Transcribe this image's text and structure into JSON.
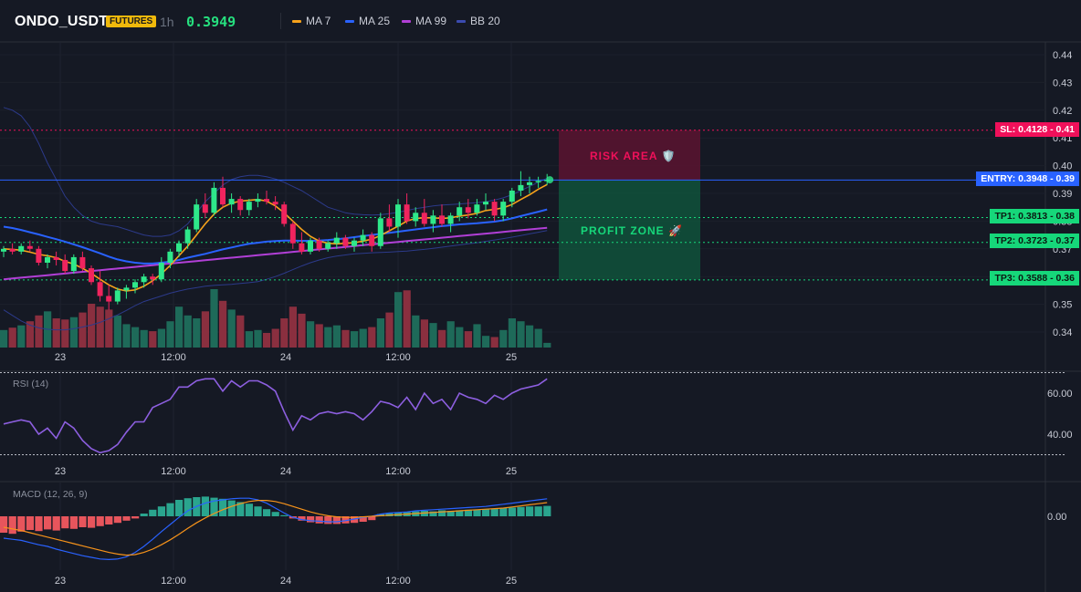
{
  "header": {
    "symbol": "ONDO_USDT",
    "badge": "FUTURES",
    "timeframe": "1h",
    "price": "0.3949",
    "legend": [
      {
        "label": "MA 7",
        "color": "#f7a21b"
      },
      {
        "label": "MA 25",
        "color": "#2962ff"
      },
      {
        "label": "MA 99",
        "color": "#b13fd6"
      },
      {
        "label": "BB 20",
        "color": "#2c3a8a"
      }
    ]
  },
  "levels": {
    "sl": {
      "label": "SL: 0.4128 - 0.41",
      "color": "#f0105a"
    },
    "entry": {
      "label": "ENTRY: 0.3948 - 0.39",
      "color": "#2962ff"
    },
    "tp1": {
      "label": "TP1: 0.3813 - 0.38",
      "color": "#16d77a"
    },
    "tp2": {
      "label": "TP2: 0.3723 - 0.37",
      "color": "#16d77a"
    },
    "tp3": {
      "label": "TP3: 0.3588 - 0.36",
      "color": "#16d77a"
    }
  },
  "zones": {
    "risk": "RISK AREA 🛡️",
    "profit": "PROFIT ZONE 🚀"
  },
  "panes": {
    "rsi_title": "RSI (14)",
    "macd_title": "MACD (12, 26, 9)"
  },
  "chart_data": [
    {
      "type": "candlestick",
      "y_ticks": [
        "0.44",
        "0.43",
        "0.42",
        "0.41",
        "0.40",
        "0.39",
        "0.38",
        "0.37",
        "0.36",
        "0.35",
        "0.34"
      ],
      "x_labels": [
        "23",
        "12:00",
        "24",
        "12:00",
        "25"
      ],
      "candles": [
        [
          0.369,
          0.371,
          0.367,
          0.37
        ],
        [
          0.37,
          0.372,
          0.368,
          0.369
        ],
        [
          0.369,
          0.372,
          0.368,
          0.371
        ],
        [
          0.371,
          0.373,
          0.369,
          0.37
        ],
        [
          0.37,
          0.371,
          0.364,
          0.365
        ],
        [
          0.365,
          0.368,
          0.363,
          0.367
        ],
        [
          0.367,
          0.369,
          0.364,
          0.366
        ],
        [
          0.366,
          0.368,
          0.361,
          0.362
        ],
        [
          0.362,
          0.368,
          0.361,
          0.367
        ],
        [
          0.367,
          0.369,
          0.362,
          0.363
        ],
        [
          0.363,
          0.364,
          0.357,
          0.358
        ],
        [
          0.358,
          0.362,
          0.351,
          0.353
        ],
        [
          0.353,
          0.357,
          0.348,
          0.351
        ],
        [
          0.351,
          0.356,
          0.35,
          0.355
        ],
        [
          0.355,
          0.357,
          0.352,
          0.356
        ],
        [
          0.356,
          0.359,
          0.354,
          0.358
        ],
        [
          0.358,
          0.361,
          0.356,
          0.36
        ],
        [
          0.36,
          0.361,
          0.357,
          0.359
        ],
        [
          0.359,
          0.367,
          0.358,
          0.365
        ],
        [
          0.365,
          0.37,
          0.363,
          0.369
        ],
        [
          0.369,
          0.373,
          0.367,
          0.372
        ],
        [
          0.372,
          0.378,
          0.37,
          0.377
        ],
        [
          0.377,
          0.388,
          0.376,
          0.386
        ],
        [
          0.386,
          0.39,
          0.381,
          0.383
        ],
        [
          0.383,
          0.394,
          0.382,
          0.392
        ],
        [
          0.392,
          0.396,
          0.385,
          0.386
        ],
        [
          0.386,
          0.39,
          0.383,
          0.388
        ],
        [
          0.388,
          0.389,
          0.382,
          0.384
        ],
        [
          0.384,
          0.388,
          0.382,
          0.387
        ],
        [
          0.387,
          0.39,
          0.385,
          0.388
        ],
        [
          0.388,
          0.391,
          0.386,
          0.387
        ],
        [
          0.387,
          0.389,
          0.384,
          0.386
        ],
        [
          0.386,
          0.387,
          0.378,
          0.379
        ],
        [
          0.379,
          0.38,
          0.37,
          0.372
        ],
        [
          0.372,
          0.376,
          0.368,
          0.369
        ],
        [
          0.369,
          0.374,
          0.368,
          0.373
        ],
        [
          0.373,
          0.374,
          0.369,
          0.37
        ],
        [
          0.37,
          0.373,
          0.369,
          0.372
        ],
        [
          0.372,
          0.376,
          0.37,
          0.374
        ],
        [
          0.374,
          0.375,
          0.37,
          0.371
        ],
        [
          0.371,
          0.374,
          0.369,
          0.373
        ],
        [
          0.373,
          0.377,
          0.371,
          0.375
        ],
        [
          0.375,
          0.376,
          0.369,
          0.371
        ],
        [
          0.371,
          0.383,
          0.37,
          0.381
        ],
        [
          0.381,
          0.386,
          0.376,
          0.378
        ],
        [
          0.378,
          0.388,
          0.374,
          0.386
        ],
        [
          0.386,
          0.39,
          0.379,
          0.38
        ],
        [
          0.38,
          0.385,
          0.378,
          0.383
        ],
        [
          0.383,
          0.388,
          0.378,
          0.379
        ],
        [
          0.379,
          0.384,
          0.376,
          0.382
        ],
        [
          0.382,
          0.386,
          0.378,
          0.379
        ],
        [
          0.379,
          0.383,
          0.376,
          0.382
        ],
        [
          0.382,
          0.387,
          0.38,
          0.385
        ],
        [
          0.385,
          0.388,
          0.381,
          0.383
        ],
        [
          0.383,
          0.388,
          0.382,
          0.386
        ],
        [
          0.386,
          0.39,
          0.384,
          0.387
        ],
        [
          0.387,
          0.388,
          0.38,
          0.382
        ],
        [
          0.382,
          0.388,
          0.38,
          0.387
        ],
        [
          0.387,
          0.392,
          0.385,
          0.391
        ],
        [
          0.391,
          0.398,
          0.389,
          0.393
        ],
        [
          0.393,
          0.396,
          0.39,
          0.394
        ],
        [
          0.394,
          0.396,
          0.392,
          0.3945
        ],
        [
          0.3945,
          0.397,
          0.393,
          0.3949
        ]
      ],
      "ma7": [
        0.37,
        0.3698,
        0.3695,
        0.3688,
        0.368,
        0.3675,
        0.3668,
        0.3655,
        0.3645,
        0.363,
        0.3612,
        0.359,
        0.357,
        0.3555,
        0.3548,
        0.3552,
        0.3565,
        0.3585,
        0.361,
        0.364,
        0.3675,
        0.371,
        0.375,
        0.379,
        0.3825,
        0.385,
        0.3865,
        0.3872,
        0.3875,
        0.3878,
        0.3872,
        0.3855,
        0.383,
        0.38,
        0.377,
        0.3745,
        0.3728,
        0.372,
        0.3718,
        0.372,
        0.3722,
        0.3728,
        0.3735,
        0.3748,
        0.3765,
        0.3782,
        0.38,
        0.381,
        0.3812,
        0.3812,
        0.381,
        0.3812,
        0.3818,
        0.3822,
        0.3828,
        0.3838,
        0.3842,
        0.3848,
        0.386,
        0.3878,
        0.3895,
        0.3915,
        0.3932
      ],
      "ma25": [
        0.378,
        0.3775,
        0.3768,
        0.376,
        0.3752,
        0.3743,
        0.3735,
        0.3726,
        0.3716,
        0.3706,
        0.3695,
        0.3684,
        0.3672,
        0.3662,
        0.3655,
        0.365,
        0.3647,
        0.3647,
        0.365,
        0.3654,
        0.366,
        0.3668,
        0.3675,
        0.3682,
        0.369,
        0.3698,
        0.3705,
        0.3712,
        0.3718,
        0.3722,
        0.3726,
        0.3728,
        0.373,
        0.373,
        0.3729,
        0.3729,
        0.373,
        0.3732,
        0.3735,
        0.3738,
        0.3742,
        0.3746,
        0.375,
        0.3754,
        0.3758,
        0.3762,
        0.3766,
        0.377,
        0.3774,
        0.3778,
        0.3782,
        0.3785,
        0.3788,
        0.379,
        0.3792,
        0.3795,
        0.3798,
        0.3803,
        0.381,
        0.3818,
        0.3826,
        0.3834,
        0.3842
      ],
      "ma99": [
        0.359,
        0.3593,
        0.3596,
        0.3599,
        0.3602,
        0.3605,
        0.3608,
        0.3611,
        0.3614,
        0.3617,
        0.362,
        0.3623,
        0.3626,
        0.3629,
        0.3632,
        0.3635,
        0.3638,
        0.3641,
        0.3644,
        0.3647,
        0.365,
        0.3653,
        0.3656,
        0.3659,
        0.3662,
        0.3665,
        0.3668,
        0.3671,
        0.3674,
        0.3677,
        0.368,
        0.3683,
        0.3686,
        0.3689,
        0.3692,
        0.3695,
        0.3698,
        0.3701,
        0.3704,
        0.3707,
        0.371,
        0.3713,
        0.3716,
        0.3719,
        0.3722,
        0.3725,
        0.3728,
        0.3731,
        0.3734,
        0.3737,
        0.374,
        0.3743,
        0.3746,
        0.3749,
        0.3752,
        0.3755,
        0.3758,
        0.3761,
        0.3764,
        0.3767,
        0.377,
        0.3773,
        0.3776
      ],
      "bb_upper": [
        0.421,
        0.42,
        0.418,
        0.414,
        0.408,
        0.401,
        0.395,
        0.389,
        0.385,
        0.382,
        0.38,
        0.379,
        0.3785,
        0.378,
        0.377,
        0.376,
        0.375,
        0.3745,
        0.3745,
        0.375,
        0.3765,
        0.379,
        0.383,
        0.387,
        0.39,
        0.393,
        0.395,
        0.396,
        0.3965,
        0.3965,
        0.396,
        0.3952,
        0.394,
        0.3925,
        0.391,
        0.389,
        0.387,
        0.385,
        0.384,
        0.383,
        0.3825,
        0.3823,
        0.3822,
        0.3823,
        0.3827,
        0.3832,
        0.3838,
        0.3845,
        0.385,
        0.3855,
        0.3858,
        0.386,
        0.3862,
        0.3864,
        0.3866,
        0.387,
        0.3876,
        0.3884,
        0.3895,
        0.391,
        0.3925,
        0.394,
        0.3955
      ],
      "bb_lower": [
        0.348,
        0.346,
        0.344,
        0.3425,
        0.3415,
        0.341,
        0.3408,
        0.3408,
        0.3412,
        0.3418,
        0.3425,
        0.3435,
        0.3448,
        0.3462,
        0.3478,
        0.3495,
        0.351,
        0.352,
        0.353,
        0.354,
        0.3548,
        0.3555,
        0.356,
        0.3565,
        0.3568,
        0.357,
        0.3572,
        0.3575,
        0.3578,
        0.3582,
        0.359,
        0.36,
        0.3612,
        0.3625,
        0.3638,
        0.365,
        0.366,
        0.3668,
        0.3674,
        0.3678,
        0.3682,
        0.3684,
        0.3686,
        0.3687,
        0.3688,
        0.369,
        0.3692,
        0.3695,
        0.3698,
        0.3702,
        0.3706,
        0.371,
        0.3714,
        0.3718,
        0.3722,
        0.3727,
        0.3732,
        0.3737,
        0.3742,
        0.3748,
        0.3754,
        0.376,
        0.3766
      ],
      "volume": [
        0.3,
        0.34,
        0.38,
        0.45,
        0.55,
        0.62,
        0.5,
        0.48,
        0.52,
        0.6,
        0.75,
        0.7,
        0.65,
        0.55,
        0.4,
        0.35,
        0.3,
        0.28,
        0.32,
        0.45,
        0.7,
        0.55,
        0.5,
        0.62,
        1.0,
        0.8,
        0.65,
        0.55,
        0.28,
        0.3,
        0.25,
        0.32,
        0.5,
        0.7,
        0.58,
        0.45,
        0.4,
        0.35,
        0.38,
        0.3,
        0.28,
        0.32,
        0.35,
        0.5,
        0.6,
        0.95,
        0.98,
        0.55,
        0.48,
        0.42,
        0.3,
        0.45,
        0.35,
        0.28,
        0.4,
        0.2,
        0.18,
        0.3,
        0.5,
        0.45,
        0.38,
        0.32,
        0.08
      ]
    },
    {
      "type": "line",
      "name": "RSI (14)",
      "y_ticks": [
        "60.00",
        "40.00"
      ],
      "x_labels": [
        "23",
        "12:00",
        "24",
        "12:00",
        "25"
      ],
      "values": [
        45,
        46,
        47,
        46,
        40,
        43,
        38,
        46,
        43,
        37,
        33,
        31,
        32,
        35,
        41,
        46,
        46,
        53,
        55,
        57,
        63,
        63,
        66,
        67,
        67,
        61,
        66,
        63,
        66,
        66,
        64,
        61,
        51,
        42,
        49,
        47,
        50,
        51,
        50,
        51,
        50,
        47,
        51,
        56,
        55,
        53,
        58,
        52,
        60,
        55,
        57,
        52,
        60,
        58,
        57,
        55,
        59,
        57,
        60,
        62,
        63,
        64,
        67
      ]
    },
    {
      "type": "bar",
      "name": "MACD (12, 26, 9)",
      "y_ticks": [
        "0.00"
      ],
      "x_labels": [
        "23",
        "12:00",
        "24",
        "12:00",
        "25"
      ],
      "histogram": [
        -0.003,
        -0.0032,
        -0.0028,
        -0.0025,
        -0.0027,
        -0.0024,
        -0.0026,
        -0.0022,
        -0.0023,
        -0.002,
        -0.0021,
        -0.0018,
        -0.0015,
        -0.0012,
        -0.0008,
        -0.0004,
        0.0005,
        0.0012,
        0.0018,
        0.0024,
        0.003,
        0.0033,
        0.0035,
        0.0036,
        0.0034,
        0.0032,
        0.0029,
        0.0026,
        0.0023,
        0.0018,
        0.0013,
        0.0008,
        0.0002,
        -0.0004,
        -0.0008,
        -0.0011,
        -0.0013,
        -0.0014,
        -0.0014,
        -0.0013,
        -0.0012,
        -0.001,
        -0.0007,
        0.0004,
        0.0006,
        0.0007,
        0.0008,
        0.0009,
        0.001,
        0.0009,
        0.0011,
        0.001,
        0.0011,
        0.0012,
        0.0012,
        0.0013,
        0.0014,
        0.0015,
        0.0016,
        0.0017,
        0.0018,
        0.0018,
        0.0019
      ],
      "macd": [
        -0.004,
        -0.0042,
        -0.0044,
        -0.0048,
        -0.0052,
        -0.0055,
        -0.006,
        -0.0064,
        -0.0068,
        -0.0072,
        -0.0075,
        -0.0078,
        -0.0079,
        -0.0078,
        -0.0074,
        -0.0066,
        -0.0055,
        -0.0042,
        -0.0028,
        -0.0015,
        -0.0002,
        0.001,
        0.0018,
        0.0024,
        0.0028,
        0.003,
        0.0032,
        0.0033,
        0.0033,
        0.003,
        0.0024,
        0.0015,
        0.0006,
        -0.0002,
        -0.0006,
        -0.0008,
        -0.0009,
        -0.001,
        -0.001,
        -0.0008,
        -0.0005,
        -0.0002,
        0.0,
        0.0004,
        0.0006,
        0.0007,
        0.0008,
        0.001,
        0.0011,
        0.0012,
        0.0013,
        0.0014,
        0.0015,
        0.0016,
        0.0017,
        0.0018,
        0.002,
        0.0022,
        0.0024,
        0.0026,
        0.0028,
        0.003,
        0.0032
      ],
      "signal": [
        -0.002,
        -0.0023,
        -0.0026,
        -0.003,
        -0.0034,
        -0.0038,
        -0.0042,
        -0.0046,
        -0.005,
        -0.0054,
        -0.0058,
        -0.0062,
        -0.0066,
        -0.0069,
        -0.0071,
        -0.007,
        -0.0066,
        -0.006,
        -0.0052,
        -0.0043,
        -0.0033,
        -0.0022,
        -0.0012,
        -0.0003,
        0.0005,
        0.0012,
        0.0018,
        0.0023,
        0.0027,
        0.0029,
        0.0029,
        0.0027,
        0.0023,
        0.0018,
        0.0013,
        0.0008,
        0.0004,
        0.0001,
        -0.0001,
        -0.0002,
        -0.0002,
        -0.0001,
        0.0,
        0.0001,
        0.0002,
        0.0003,
        0.0004,
        0.0005,
        0.0006,
        0.0007,
        0.0008,
        0.0009,
        0.001,
        0.0011,
        0.0012,
        0.0013,
        0.0014,
        0.0015,
        0.0017,
        0.0019,
        0.0021,
        0.0023,
        0.0025
      ]
    }
  ]
}
